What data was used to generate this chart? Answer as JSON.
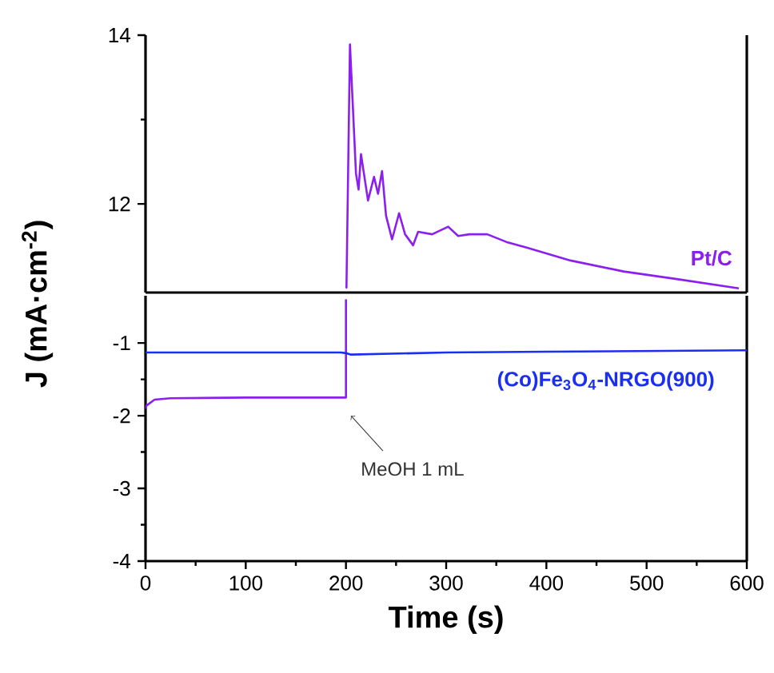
{
  "chart_data": [
    {
      "type": "line",
      "xlim": [
        0,
        600
      ],
      "ylim": [
        10.95,
        14
      ],
      "yticks": [
        12,
        14
      ],
      "tick_labels": "y",
      "series": [
        {
          "name": "Pt/C",
          "color": "#8b1ff0",
          "x": [
            200,
            200.5,
            204,
            210,
            212.6,
            215,
            222,
            228,
            232,
            236,
            240,
            246,
            253,
            259,
            267,
            272,
            286,
            302,
            312,
            323,
            341,
            360,
            381,
            424,
            477,
            530,
            592
          ],
          "values": [
            11,
            11.01,
            13.89,
            12.36,
            12.17,
            12.59,
            12.04,
            12.32,
            12.12,
            12.39,
            11.86,
            11.58,
            11.89,
            11.64,
            11.51,
            11.67,
            11.64,
            11.73,
            11.62,
            11.64,
            11.64,
            11.55,
            11.48,
            11.33,
            11.2,
            11.11,
            11.0
          ]
        }
      ]
    },
    {
      "type": "line",
      "xlim": [
        0,
        600
      ],
      "ylim": [
        -4,
        -0.35
      ],
      "xticks": [
        0,
        100,
        200,
        300,
        400,
        500,
        600
      ],
      "yticks": [
        -4,
        -3,
        -2,
        -1
      ],
      "xlabel": "Time (s)",
      "ylabel": "J (mA·cm$^{-2}$)",
      "annotations": [
        {
          "text": "MeOH 1 mL",
          "x": 205,
          "y": -2.0
        }
      ],
      "series": [
        {
          "color": "#8b1ff0",
          "x": [
            0,
            1,
            9,
            25,
            100,
            200,
            200
          ],
          "values": [
            -1.9,
            -1.86,
            -1.78,
            -1.76,
            -1.75,
            -1.75,
            -0.4
          ]
        },
        {
          "name": "(Co)Fe$_{3}$O$_{4}$-NRGO(900)",
          "color": "#1a2ff2",
          "x": [
            0,
            100,
            195,
            200,
            205,
            300,
            400,
            500,
            600
          ],
          "values": [
            -1.13,
            -1.13,
            -1.13,
            -1.14,
            -1.16,
            -1.13,
            -1.12,
            -1.11,
            -1.1
          ]
        }
      ]
    }
  ]
}
